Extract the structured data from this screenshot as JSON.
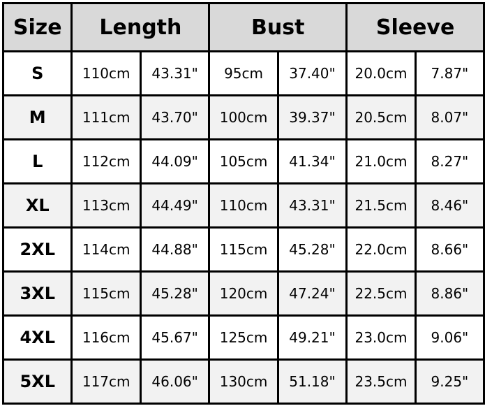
{
  "headers": [
    "Size",
    "Length",
    "Bust",
    "Sleeve"
  ],
  "colors": {
    "header_bg": "#d9d9d9",
    "alt_row_bg": "#f2f2f2",
    "border": "#000000"
  },
  "rows": [
    {
      "size": "S",
      "length_cm": "110cm",
      "length_in": "43.31\"",
      "bust_cm": "95cm",
      "bust_in": "37.40\"",
      "sleeve_cm": "20.0cm",
      "sleeve_in": "7.87\""
    },
    {
      "size": "M",
      "length_cm": "111cm",
      "length_in": "43.70\"",
      "bust_cm": "100cm",
      "bust_in": "39.37\"",
      "sleeve_cm": "20.5cm",
      "sleeve_in": "8.07\""
    },
    {
      "size": "L",
      "length_cm": "112cm",
      "length_in": "44.09\"",
      "bust_cm": "105cm",
      "bust_in": "41.34\"",
      "sleeve_cm": "21.0cm",
      "sleeve_in": "8.27\""
    },
    {
      "size": "XL",
      "length_cm": "113cm",
      "length_in": "44.49\"",
      "bust_cm": "110cm",
      "bust_in": "43.31\"",
      "sleeve_cm": "21.5cm",
      "sleeve_in": "8.46\""
    },
    {
      "size": "2XL",
      "length_cm": "114cm",
      "length_in": "44.88\"",
      "bust_cm": "115cm",
      "bust_in": "45.28\"",
      "sleeve_cm": "22.0cm",
      "sleeve_in": "8.66\""
    },
    {
      "size": "3XL",
      "length_cm": "115cm",
      "length_in": "45.28\"",
      "bust_cm": "120cm",
      "bust_in": "47.24\"",
      "sleeve_cm": "22.5cm",
      "sleeve_in": "8.86\""
    },
    {
      "size": "4XL",
      "length_cm": "116cm",
      "length_in": "45.67\"",
      "bust_cm": "125cm",
      "bust_in": "49.21\"",
      "sleeve_cm": "23.0cm",
      "sleeve_in": "9.06\""
    },
    {
      "size": "5XL",
      "length_cm": "117cm",
      "length_in": "46.06\"",
      "bust_cm": "130cm",
      "bust_in": "51.18\"",
      "sleeve_cm": "23.5cm",
      "sleeve_in": "9.25\""
    }
  ]
}
